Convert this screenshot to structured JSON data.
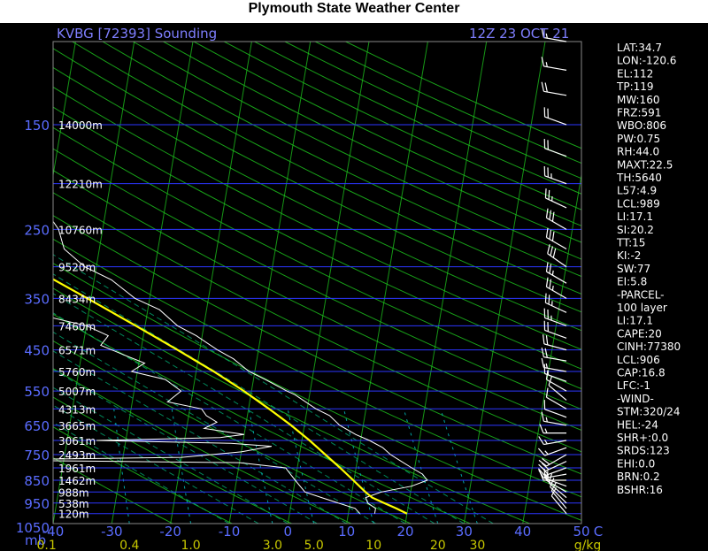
{
  "header": {
    "title": "Plymouth State Weather Center",
    "station_label": "KVBG [72393] Sounding",
    "time_label": "12Z 23 OCT 21"
  },
  "stats": [
    "LAT:34.7",
    "LON:-120.6",
    "EL:112",
    "TP:119",
    "MW:160",
    "FRZ:591",
    "WBO:806",
    "PW:0.75",
    "RH:44.0",
    "MAXT:22.5",
    "TH:5640",
    "L57:4.9",
    "LCL:989",
    "LI:17.1",
    "SI:20.2",
    "TT:15",
    "KI:-2",
    "SW:77",
    "EI:5.8",
    "-PARCEL-",
    "100 layer",
    "LI:17.1",
    "CAPE:20",
    "CINH:77380",
    "LCL:906",
    "CAP:16.8",
    "LFC:-1",
    "-WIND-",
    "STM:320/24",
    "HEL:-24",
    "SHR+:0.0",
    "SRDS:123",
    "EHI:0.0",
    "BRN:0.2",
    "BSHR:16"
  ],
  "colors": {
    "background": "#000000",
    "isobar": "#2c36ff",
    "isotherm": "#1ec81e",
    "dry_adiabat": "#1ec81e",
    "moist_adiabat": "#00b478",
    "mixing_ratio": "#00b4b4",
    "temperature": "#ffffff",
    "dewpoint": "#ffffff",
    "parcel": "#ffff00",
    "axis_text": "#5a6cff",
    "mixing_text": "#c8c800"
  },
  "chart_data": {
    "type": "skew-t",
    "ylabel": "mb",
    "xlabel": "C",
    "mixing_ratio_unit": "g/kg",
    "pressure_range": [
      100,
      1050
    ],
    "temperature_range": [
      -40,
      50
    ],
    "pressure_ticks": [
      "150",
      "250",
      "350",
      "450",
      "550",
      "650",
      "750",
      "850",
      "950",
      "1050"
    ],
    "pressure_tick_values": [
      150,
      250,
      350,
      450,
      550,
      650,
      750,
      850,
      950,
      1050
    ],
    "height_ticks": [
      {
        "p": 150,
        "label": "14000m"
      },
      {
        "p": 200,
        "label": "12210m"
      },
      {
        "p": 250,
        "label": "10760m"
      },
      {
        "p": 300,
        "label": "9520m"
      },
      {
        "p": 350,
        "label": "8434m"
      },
      {
        "p": 400,
        "label": "7460m"
      },
      {
        "p": 450,
        "label": "6571m"
      },
      {
        "p": 500,
        "label": "5760m"
      },
      {
        "p": 550,
        "label": "5007m"
      },
      {
        "p": 600,
        "label": "4313m"
      },
      {
        "p": 650,
        "label": "3665m"
      },
      {
        "p": 700,
        "label": "3061m"
      },
      {
        "p": 750,
        "label": "2493m"
      },
      {
        "p": 800,
        "label": "1961m"
      },
      {
        "p": 850,
        "label": "1462m"
      },
      {
        "p": 900,
        "label": "988m"
      },
      {
        "p": 950,
        "label": "538m"
      },
      {
        "p": 1000,
        "label": "120m"
      }
    ],
    "temperature_ticks": [
      "-40",
      "-30",
      "-20",
      "-10",
      "0",
      "10",
      "20",
      "30",
      "40",
      "50"
    ],
    "temperature_tick_values": [
      -40,
      -30,
      -20,
      -10,
      0,
      10,
      20,
      30,
      40,
      50
    ],
    "mixing_ratio_ticks": [
      "0.1",
      "0.4",
      "1.0",
      "3.0",
      "5.0",
      "10",
      "20",
      "30"
    ],
    "mixing_ratio_tick_values": [
      0.1,
      0.4,
      1.0,
      3.0,
      5.0,
      10,
      20,
      30
    ],
    "series": [
      {
        "pressure": [
          1000,
          975,
          950,
          925,
          900,
          875,
          850,
          825,
          800,
          775,
          750,
          725,
          700,
          680,
          650,
          620,
          600,
          560,
          550,
          520,
          500,
          470,
          450,
          420,
          400,
          370,
          350,
          320,
          300,
          275,
          250,
          230,
          200,
          175,
          150,
          130,
          110,
          100
        ],
        "temperature": [
          14.5,
          14.5,
          13.0,
          12.5,
          15.0,
          20.0,
          22.5,
          21.5,
          19.5,
          17.5,
          15.5,
          14.0,
          11.5,
          9.0,
          6.0,
          4.0,
          1.5,
          -2.5,
          -4.0,
          -8.0,
          -11.0,
          -14.0,
          -17.0,
          -21.0,
          -24.5,
          -28.0,
          -32.5,
          -37.0,
          -42.0,
          -46.0,
          -47.5,
          -50.0,
          -55.0,
          -56.0,
          -58.0,
          -60.0,
          -55.0,
          -56.0
        ]
      },
      {
        "pressure": [
          1000,
          975,
          950,
          925,
          900,
          875,
          850,
          825,
          800,
          780,
          770,
          760,
          740,
          720,
          710,
          700,
          690,
          680,
          660,
          640,
          620,
          600,
          580,
          550,
          520,
          500,
          480,
          460,
          440,
          420,
          400,
          380,
          360,
          340,
          320,
          300,
          275,
          250,
          200,
          150,
          100
        ],
        "temperature": [
          12.0,
          11.0,
          8.0,
          5.0,
          2.0,
          1.0,
          0.0,
          -1.0,
          -2.0,
          -10.0,
          -55.0,
          -20.0,
          -10.0,
          -5.0,
          -12.0,
          -35.0,
          -14.0,
          -10.0,
          -17.0,
          -15.0,
          -17.0,
          -18.0,
          -24.0,
          -22.0,
          -25.0,
          -31.0,
          -29.0,
          -33.0,
          -37.0,
          -36.0,
          -40.0,
          -48.0,
          -47.0,
          -55.0,
          -61.0,
          -58.0,
          -56.0,
          -70.0,
          -80.0,
          -85.0,
          -86.0
        ]
      },
      {
        "pressure": [
          1000,
          975,
          950,
          925,
          900,
          850,
          800,
          750,
          700,
          650,
          600,
          550,
          500,
          450,
          400,
          350,
          300,
          250,
          200,
          150,
          100
        ],
        "temperature": [
          20.0,
          18.0,
          15.8,
          13.6,
          12.3,
          9.9,
          7.3,
          4.4,
          1.3,
          -2.3,
          -6.5,
          -11.3,
          -17.0,
          -23.8,
          -31.6,
          -40.6,
          -51.2,
          -63.2,
          -76.3,
          -90.3,
          -100.0
        ]
      }
    ],
    "wind_barbs": [
      {
        "p": 1000,
        "dir": 320,
        "spd": 10
      },
      {
        "p": 975,
        "dir": 320,
        "spd": 10
      },
      {
        "p": 950,
        "dir": 315,
        "spd": 10
      },
      {
        "p": 925,
        "dir": 310,
        "spd": 10
      },
      {
        "p": 900,
        "dir": 300,
        "spd": 15
      },
      {
        "p": 875,
        "dir": 290,
        "spd": 15
      },
      {
        "p": 850,
        "dir": 270,
        "spd": 15
      },
      {
        "p": 825,
        "dir": 260,
        "spd": 15
      },
      {
        "p": 800,
        "dir": 250,
        "spd": 20
      },
      {
        "p": 775,
        "dir": 245,
        "spd": 20
      },
      {
        "p": 750,
        "dir": 240,
        "spd": 20
      },
      {
        "p": 725,
        "dir": 250,
        "spd": 15
      },
      {
        "p": 700,
        "dir": 260,
        "spd": 15
      },
      {
        "p": 675,
        "dir": 270,
        "spd": 15
      },
      {
        "p": 650,
        "dir": 280,
        "spd": 15
      },
      {
        "p": 625,
        "dir": 290,
        "spd": 10
      },
      {
        "p": 600,
        "dir": 300,
        "spd": 10
      },
      {
        "p": 575,
        "dir": 310,
        "spd": 10
      },
      {
        "p": 550,
        "dir": 300,
        "spd": 10
      },
      {
        "p": 525,
        "dir": 290,
        "spd": 15
      },
      {
        "p": 500,
        "dir": 280,
        "spd": 15
      },
      {
        "p": 475,
        "dir": 280,
        "spd": 20
      },
      {
        "p": 450,
        "dir": 285,
        "spd": 20
      },
      {
        "p": 425,
        "dir": 290,
        "spd": 20
      },
      {
        "p": 400,
        "dir": 290,
        "spd": 25
      },
      {
        "p": 375,
        "dir": 295,
        "spd": 25
      },
      {
        "p": 350,
        "dir": 300,
        "spd": 25
      },
      {
        "p": 325,
        "dir": 300,
        "spd": 25
      },
      {
        "p": 300,
        "dir": 305,
        "spd": 30
      },
      {
        "p": 275,
        "dir": 300,
        "spd": 30
      },
      {
        "p": 250,
        "dir": 300,
        "spd": 30
      },
      {
        "p": 225,
        "dir": 295,
        "spd": 25
      },
      {
        "p": 200,
        "dir": 290,
        "spd": 25
      },
      {
        "p": 175,
        "dir": 290,
        "spd": 20
      },
      {
        "p": 150,
        "dir": 290,
        "spd": 20
      },
      {
        "p": 130,
        "dir": 280,
        "spd": 20
      },
      {
        "p": 115,
        "dir": 280,
        "spd": 15
      },
      {
        "p": 100,
        "dir": 280,
        "spd": 15
      }
    ]
  }
}
